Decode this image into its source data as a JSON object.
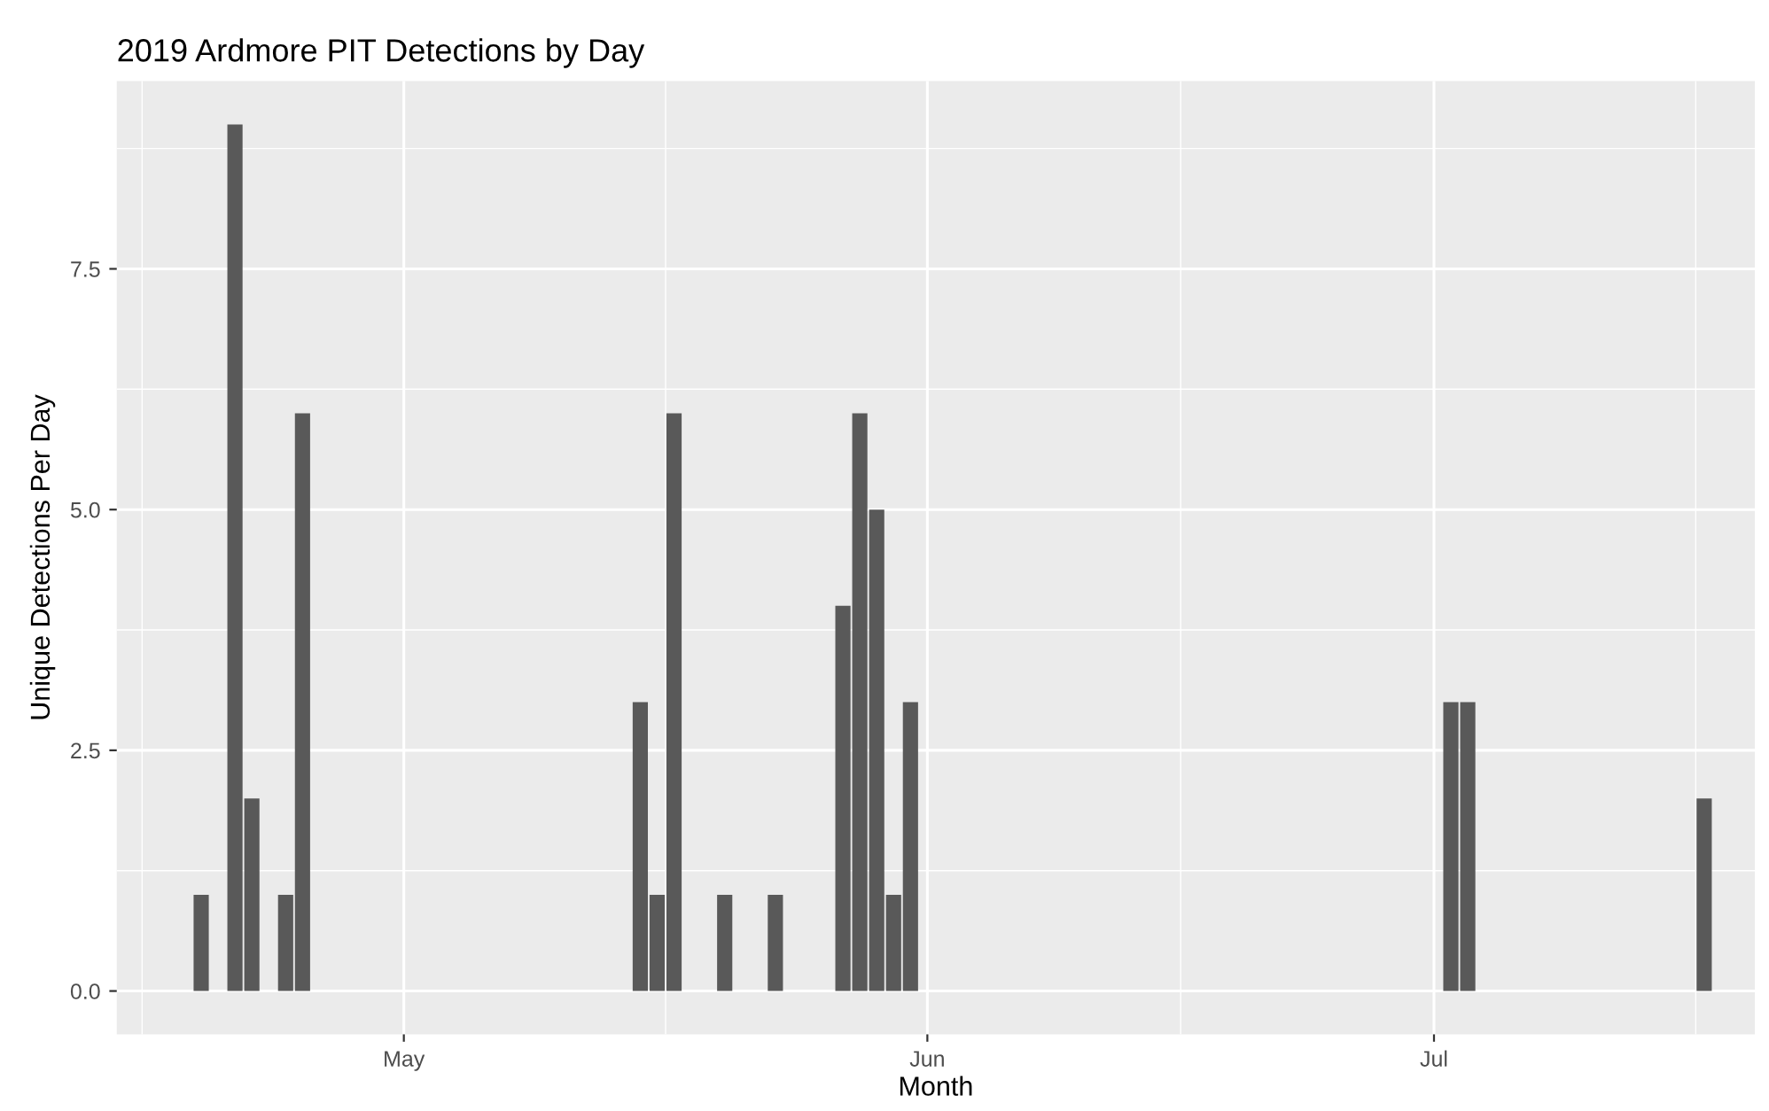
{
  "chart_data": {
    "type": "bar",
    "title": "2019 Ardmore PIT Detections by Day",
    "xlabel": "Month",
    "ylabel": "Unique Detections Per Day",
    "x": [
      "2019-04-19",
      "2019-04-21",
      "2019-04-22",
      "2019-04-24",
      "2019-04-25",
      "2019-05-15",
      "2019-05-16",
      "2019-05-17",
      "2019-05-20",
      "2019-05-23",
      "2019-05-27",
      "2019-05-28",
      "2019-05-29",
      "2019-05-30",
      "2019-05-31",
      "2019-07-02",
      "2019-07-03",
      "2019-07-17"
    ],
    "values": [
      1,
      9,
      2,
      1,
      6,
      3,
      1,
      6,
      1,
      1,
      4,
      6,
      5,
      1,
      3,
      3,
      3,
      2
    ],
    "color": "#595959",
    "xlim": [
      "2019-04-14",
      "2019-07-20"
    ],
    "xticks": [
      {
        "value": "2019-05-01",
        "label": "May"
      },
      {
        "value": "2019-06-01",
        "label": "Jun"
      },
      {
        "value": "2019-07-01",
        "label": "Jul"
      }
    ],
    "ylim": [
      -0.45,
      9.45
    ],
    "yticks": [
      {
        "value": 0,
        "label": "0.0"
      },
      {
        "value": 2.5,
        "label": "2.5"
      },
      {
        "value": 5,
        "label": "5.0"
      },
      {
        "value": 7.5,
        "label": "7.5"
      }
    ],
    "grid": true
  }
}
